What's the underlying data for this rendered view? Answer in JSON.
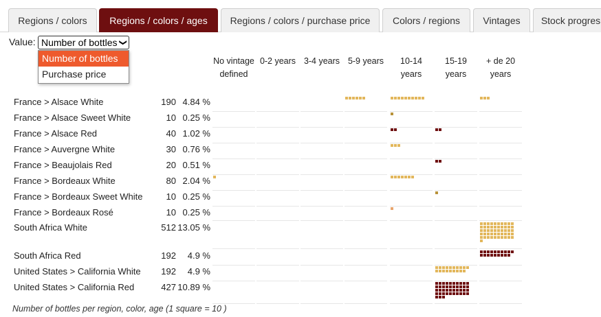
{
  "tabs": [
    {
      "label": "Regions / colors",
      "active": false
    },
    {
      "label": "Regions / colors / ages",
      "active": true
    },
    {
      "label": "Regions / colors / purchase price",
      "active": false
    },
    {
      "label": "Colors / regions",
      "active": false
    },
    {
      "label": "Vintages",
      "active": false
    },
    {
      "label": "Stock progres",
      "active": false
    }
  ],
  "value_selector": {
    "label": "Value:",
    "selected": "Number of bottles",
    "options": [
      "Number of bottles",
      "Purchase price"
    ]
  },
  "columns": [
    "No vintage defined",
    "0-2 years",
    "3-4 years",
    "5-9 years",
    "10-14 years",
    "15-19 years",
    "+ de 20 years"
  ],
  "colors": {
    "white": "#e2b75c",
    "sweet_white": "#b8923a",
    "red": "#6e0f10",
    "rose": "#e8a56d",
    "tab_active": "#6e0f10",
    "dropdown_highlight": "#ee5a2d"
  },
  "rows": [
    {
      "label": "France > Alsace White",
      "count": "190",
      "percent": "4.84 %",
      "kind": "white",
      "cells": [
        0,
        0,
        0,
        6,
        10,
        0,
        3
      ]
    },
    {
      "label": "France > Alsace Sweet White",
      "count": "10",
      "percent": "0.25 %",
      "kind": "sweet_white",
      "cells": [
        0,
        0,
        0,
        0,
        1,
        0,
        0
      ]
    },
    {
      "label": "France > Alsace Red",
      "count": "40",
      "percent": "1.02 %",
      "kind": "red",
      "cells": [
        0,
        0,
        0,
        0,
        2,
        2,
        0
      ]
    },
    {
      "label": "France > Auvergne White",
      "count": "30",
      "percent": "0.76 %",
      "kind": "white",
      "cells": [
        0,
        0,
        0,
        0,
        3,
        0,
        0
      ]
    },
    {
      "label": "France > Beaujolais Red",
      "count": "20",
      "percent": "0.51 %",
      "kind": "red",
      "cells": [
        0,
        0,
        0,
        0,
        0,
        2,
        0
      ]
    },
    {
      "label": "France > Bordeaux White",
      "count": "80",
      "percent": "2.04 %",
      "kind": "white",
      "cells": [
        1,
        0,
        0,
        0,
        7,
        0,
        0
      ]
    },
    {
      "label": "France > Bordeaux Sweet White",
      "count": "10",
      "percent": "0.25 %",
      "kind": "sweet_white",
      "cells": [
        0,
        0,
        0,
        0,
        0,
        1,
        0
      ]
    },
    {
      "label": "France > Bordeaux Rosé",
      "count": "10",
      "percent": "0.25 %",
      "kind": "rose",
      "cells": [
        0,
        0,
        0,
        0,
        1,
        0,
        0
      ]
    },
    {
      "label": "South Africa White",
      "count": "512",
      "percent": "13.05 %",
      "kind": "white",
      "cells": [
        0,
        0,
        0,
        0,
        0,
        0,
        51
      ]
    },
    {
      "label": "South Africa Red",
      "count": "192",
      "percent": "4.9 %",
      "kind": "red",
      "cells": [
        0,
        0,
        0,
        0,
        0,
        0,
        19
      ]
    },
    {
      "label": "United States > California White",
      "count": "192",
      "percent": "4.9 %",
      "kind": "white",
      "cells": [
        0,
        0,
        0,
        0,
        0,
        19,
        0
      ]
    },
    {
      "label": "United States > California Red",
      "count": "427",
      "percent": "10.89 %",
      "kind": "red",
      "cells": [
        0,
        0,
        0,
        0,
        0,
        43,
        0
      ]
    }
  ],
  "caption": "Number of bottles per region, color, age (1 square = 10 )"
}
